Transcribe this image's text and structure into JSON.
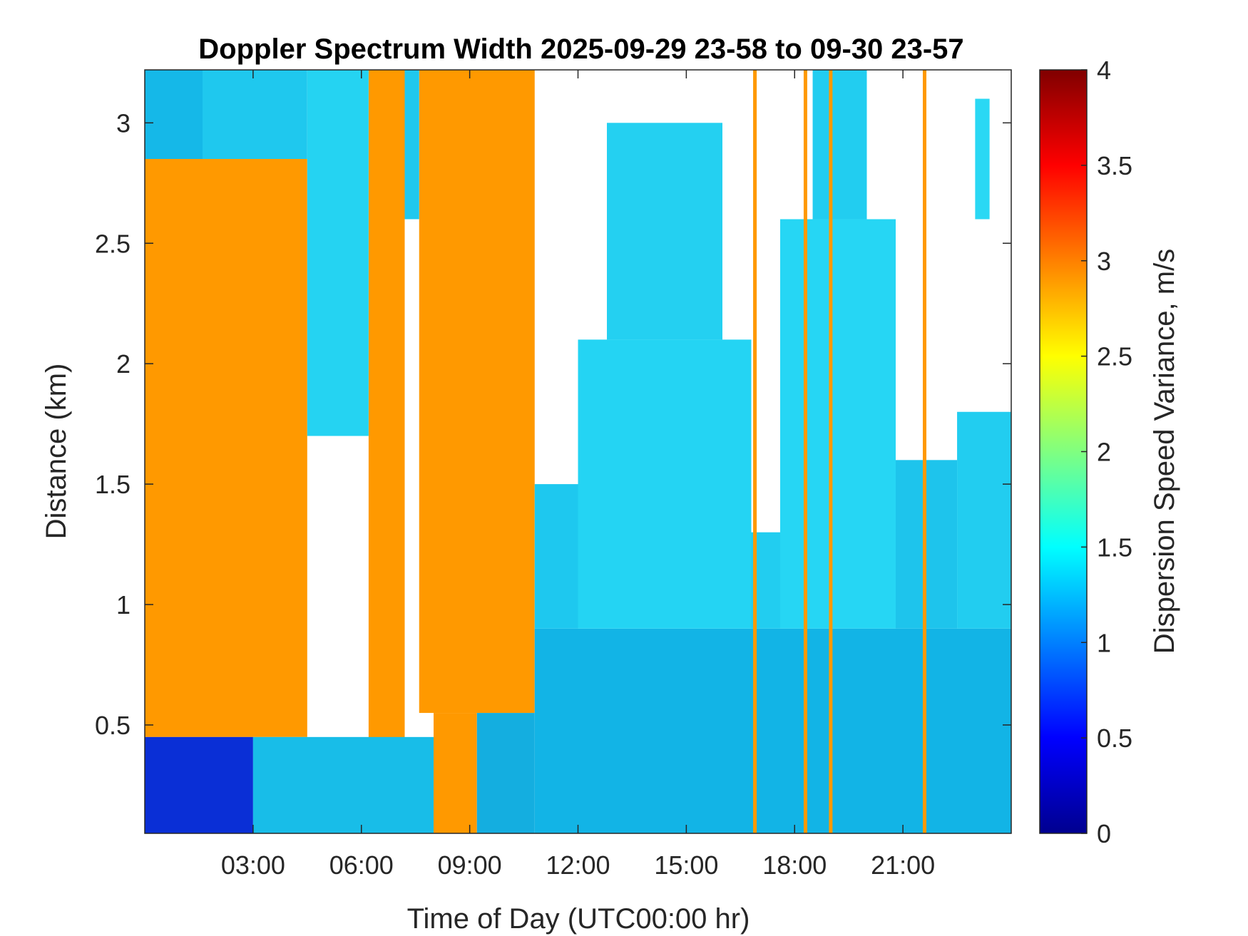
{
  "chart_data": {
    "type": "heatmap",
    "title": "Doppler Spectrum Width 2025-09-29 23-58 to 09-30 23-57",
    "xlabel": "Time of Day (UTC00:00 hr)",
    "ylabel": "Distance (km)",
    "xlim": [
      0,
      24
    ],
    "ylim": [
      0.05,
      3.22
    ],
    "x_ticks": [
      {
        "value": 3,
        "label": "03:00"
      },
      {
        "value": 6,
        "label": "06:00"
      },
      {
        "value": 9,
        "label": "09:00"
      },
      {
        "value": 12,
        "label": "12:00"
      },
      {
        "value": 15,
        "label": "15:00"
      },
      {
        "value": 18,
        "label": "18:00"
      },
      {
        "value": 21,
        "label": "21:00"
      }
    ],
    "y_ticks": [
      {
        "value": 0.5,
        "label": "0.5"
      },
      {
        "value": 1,
        "label": "1"
      },
      {
        "value": 1.5,
        "label": "1.5"
      },
      {
        "value": 2,
        "label": "2"
      },
      {
        "value": 2.5,
        "label": "2.5"
      },
      {
        "value": 3,
        "label": "3"
      }
    ],
    "colorbar": {
      "label": "Dispersion Speed Variance, m/s",
      "colormap": "jet",
      "range": [
        0,
        4
      ],
      "ticks": [
        {
          "value": 0,
          "label": "0"
        },
        {
          "value": 0.5,
          "label": "0.5"
        },
        {
          "value": 1,
          "label": "1"
        },
        {
          "value": 1.5,
          "label": "1.5"
        },
        {
          "value": 2,
          "label": "2"
        },
        {
          "value": 2.5,
          "label": "2.5"
        },
        {
          "value": 3,
          "label": "3"
        },
        {
          "value": 3.5,
          "label": "3.5"
        },
        {
          "value": 4,
          "label": "4"
        }
      ],
      "colors": [
        "#00008f",
        "#0000ff",
        "#0080ff",
        "#00ffff",
        "#80ff80",
        "#ffff00",
        "#ff8000",
        "#ff0000",
        "#800000"
      ]
    },
    "regions": [
      {
        "x": [
          0,
          4.5
        ],
        "y": [
          0.45,
          2.85
        ],
        "value": 3.0,
        "color": "#ff9900"
      },
      {
        "x": [
          0,
          1.8
        ],
        "y": [
          0.75,
          3.22
        ],
        "value": 3.0,
        "color": "#ff9900"
      },
      {
        "x": [
          6.2,
          7.2
        ],
        "y": [
          0.05,
          3.22
        ],
        "value": 3.0,
        "color": "#ff9900"
      },
      {
        "x": [
          7.6,
          10.8
        ],
        "y": [
          0.55,
          3.22
        ],
        "value": 3.0,
        "color": "#ff9900"
      },
      {
        "x": [
          8.0,
          9.2
        ],
        "y": [
          0.05,
          0.55
        ],
        "value": 3.0,
        "color": "#ff9900"
      },
      {
        "x": [
          0,
          3.0
        ],
        "y": [
          0.05,
          0.45
        ],
        "value": 0.6,
        "color": "#0a2fd6"
      },
      {
        "x": [
          0,
          1.6
        ],
        "y": [
          2.85,
          3.22
        ],
        "value": 1.3,
        "color": "#15b8e8"
      },
      {
        "x": [
          1.6,
          4.5
        ],
        "y": [
          2.85,
          3.22
        ],
        "value": 1.3,
        "color": "#1fc8ee"
      },
      {
        "x": [
          4.5,
          6.2
        ],
        "y": [
          1.7,
          3.22
        ],
        "value": 1.4,
        "color": "#25d3f2"
      },
      {
        "x": [
          7.2,
          7.6
        ],
        "y": [
          2.6,
          3.22
        ],
        "value": 1.3,
        "color": "#1fc8ee"
      },
      {
        "x": [
          3.0,
          8.0
        ],
        "y": [
          0.05,
          0.45
        ],
        "value": 1.3,
        "color": "#18bde8"
      },
      {
        "x": [
          9.2,
          10.8
        ],
        "y": [
          0.05,
          0.55
        ],
        "value": 1.2,
        "color": "#14aee0"
      },
      {
        "x": [
          10.8,
          24
        ],
        "y": [
          0.05,
          0.9
        ],
        "value": 1.2,
        "color": "#12b4e6"
      },
      {
        "x": [
          10.8,
          12.0
        ],
        "y": [
          0.9,
          1.5
        ],
        "value": 1.3,
        "color": "#1ec8ef"
      },
      {
        "x": [
          12.0,
          16.8
        ],
        "y": [
          0.9,
          2.1
        ],
        "value": 1.4,
        "color": "#24d4f3"
      },
      {
        "x": [
          12.8,
          16.0
        ],
        "y": [
          2.1,
          3.0
        ],
        "value": 1.4,
        "color": "#24d0f1"
      },
      {
        "x": [
          16.8,
          17.6
        ],
        "y": [
          0.9,
          1.3
        ],
        "value": 1.4,
        "color": "#22cdf0"
      },
      {
        "x": [
          17.6,
          20.8
        ],
        "y": [
          0.9,
          2.6
        ],
        "value": 1.4,
        "color": "#26d6f4"
      },
      {
        "x": [
          18.5,
          20.0
        ],
        "y": [
          2.6,
          3.22
        ],
        "value": 1.4,
        "color": "#22cdf0"
      },
      {
        "x": [
          20.8,
          22.5
        ],
        "y": [
          0.9,
          1.6
        ],
        "value": 1.3,
        "color": "#1ec4ec"
      },
      {
        "x": [
          22.5,
          24
        ],
        "y": [
          0.9,
          1.8
        ],
        "value": 1.4,
        "color": "#22cdf0"
      },
      {
        "x": [
          23.0,
          23.4
        ],
        "y": [
          2.6,
          3.1
        ],
        "value": 1.4,
        "color": "#2ad8f4"
      }
    ],
    "streaks": [
      {
        "x": 16.9,
        "y": [
          0.05,
          3.22
        ],
        "value": 3.0,
        "color": "#ff9900"
      },
      {
        "x": 18.3,
        "y": [
          0.05,
          3.22
        ],
        "value": 3.0,
        "color": "#ff9900"
      },
      {
        "x": 19.0,
        "y": [
          0.05,
          3.22
        ],
        "value": 3.0,
        "color": "#ff9900"
      },
      {
        "x": 21.6,
        "y": [
          0.05,
          3.22
        ],
        "value": 3.0,
        "color": "#ff9900"
      }
    ]
  }
}
